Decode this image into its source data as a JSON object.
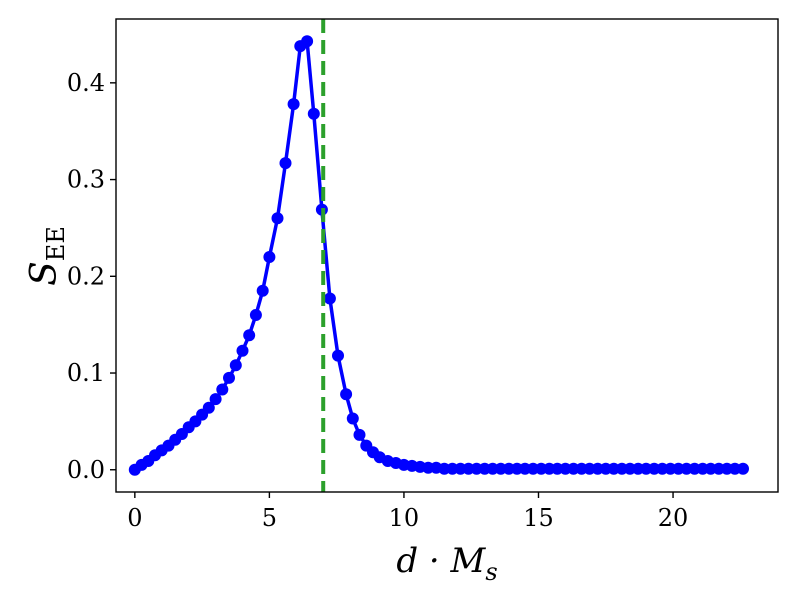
{
  "chart_data": {
    "type": "line",
    "xlabel": "d · M",
    "xlabel_sub": "s",
    "ylabel": "S",
    "ylabel_sub": "EE",
    "xlim": [
      -0.7,
      23.9
    ],
    "ylim": [
      -0.023,
      0.466
    ],
    "xticks": [
      0,
      5,
      10,
      15,
      20
    ],
    "yticks": [
      0.0,
      0.1,
      0.2,
      0.3,
      0.4
    ],
    "xtick_labels": [
      "0",
      "5",
      "10",
      "15",
      "20"
    ],
    "ytick_labels": [
      "0.0",
      "0.1",
      "0.2",
      "0.3",
      "0.4"
    ],
    "grid": false,
    "series": [
      {
        "color": "#0000ff",
        "marker": "circle",
        "points": [
          [
            0.0,
            0.0
          ],
          [
            0.25,
            0.005
          ],
          [
            0.5,
            0.009
          ],
          [
            0.75,
            0.015
          ],
          [
            1.0,
            0.02
          ],
          [
            1.25,
            0.025
          ],
          [
            1.5,
            0.031
          ],
          [
            1.75,
            0.037
          ],
          [
            2.0,
            0.044
          ],
          [
            2.25,
            0.05
          ],
          [
            2.5,
            0.057
          ],
          [
            2.75,
            0.064
          ],
          [
            3.0,
            0.073
          ],
          [
            3.25,
            0.083
          ],
          [
            3.5,
            0.095
          ],
          [
            3.75,
            0.108
          ],
          [
            4.0,
            0.123
          ],
          [
            4.25,
            0.139
          ],
          [
            4.5,
            0.16
          ],
          [
            4.75,
            0.185
          ],
          [
            5.0,
            0.22
          ],
          [
            5.3,
            0.26
          ],
          [
            5.6,
            0.317
          ],
          [
            5.9,
            0.378
          ],
          [
            6.15,
            0.438
          ],
          [
            6.4,
            0.443
          ],
          [
            6.65,
            0.368
          ],
          [
            6.95,
            0.269
          ],
          [
            7.25,
            0.177
          ],
          [
            7.55,
            0.118
          ],
          [
            7.85,
            0.078
          ],
          [
            8.1,
            0.053
          ],
          [
            8.35,
            0.036
          ],
          [
            8.6,
            0.025
          ],
          [
            8.85,
            0.018
          ],
          [
            9.1,
            0.013
          ],
          [
            9.4,
            0.009
          ],
          [
            9.7,
            0.007
          ],
          [
            10.0,
            0.005
          ],
          [
            10.3,
            0.004
          ],
          [
            10.6,
            0.003
          ],
          [
            10.9,
            0.002
          ],
          [
            11.2,
            0.002
          ],
          [
            11.5,
            0.001
          ],
          [
            11.8,
            0.001
          ],
          [
            12.1,
            0.001
          ],
          [
            12.4,
            0.001
          ],
          [
            12.7,
            0.001
          ],
          [
            13.0,
            0.001
          ],
          [
            13.3,
            0.001
          ],
          [
            13.6,
            0.001
          ],
          [
            13.9,
            0.001
          ],
          [
            14.2,
            0.001
          ],
          [
            14.5,
            0.001
          ],
          [
            14.8,
            0.001
          ],
          [
            15.1,
            0.001
          ],
          [
            15.4,
            0.001
          ],
          [
            15.7,
            0.001
          ],
          [
            16.0,
            0.001
          ],
          [
            16.3,
            0.001
          ],
          [
            16.6,
            0.001
          ],
          [
            16.9,
            0.001
          ],
          [
            17.2,
            0.001
          ],
          [
            17.5,
            0.001
          ],
          [
            17.8,
            0.001
          ],
          [
            18.1,
            0.001
          ],
          [
            18.4,
            0.001
          ],
          [
            18.7,
            0.001
          ],
          [
            19.0,
            0.001
          ],
          [
            19.3,
            0.001
          ],
          [
            19.6,
            0.001
          ],
          [
            19.9,
            0.001
          ],
          [
            20.2,
            0.001
          ],
          [
            20.5,
            0.001
          ],
          [
            20.8,
            0.001
          ],
          [
            21.1,
            0.001
          ],
          [
            21.4,
            0.001
          ],
          [
            21.7,
            0.001
          ],
          [
            22.0,
            0.001
          ],
          [
            22.3,
            0.001
          ],
          [
            22.6,
            0.001
          ]
        ]
      }
    ],
    "vline": {
      "x": 7.0,
      "color": "#2ca02c",
      "style": "dashed"
    }
  }
}
